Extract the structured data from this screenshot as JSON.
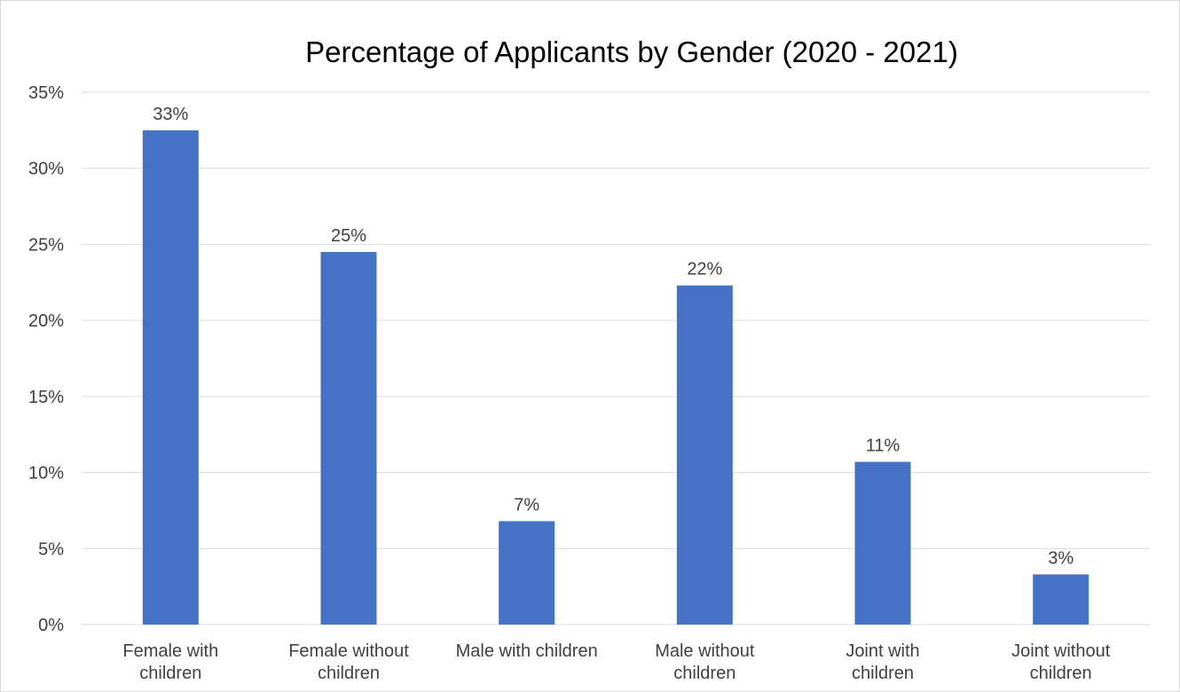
{
  "chart_data": {
    "type": "bar",
    "title": "Percentage of Applicants by Gender (2020 - 2021)",
    "xlabel": "",
    "ylabel": "",
    "categories": [
      "Female with children",
      "Female without children",
      "Male with children",
      "Male without children",
      "Joint with children",
      "Joint without children"
    ],
    "values": [
      32.5,
      24.5,
      6.8,
      22.3,
      10.7,
      3.3
    ],
    "data_labels": [
      "33%",
      "25%",
      "7%",
      "22%",
      "11%",
      "3%"
    ],
    "y_ticks": [
      "0%",
      "5%",
      "10%",
      "15%",
      "20%",
      "25%",
      "30%",
      "35%"
    ],
    "ylim": [
      0,
      35
    ],
    "grid": true,
    "legend": "none",
    "bar_color": "#4472c4",
    "grid_color": "#d9d9d9"
  }
}
